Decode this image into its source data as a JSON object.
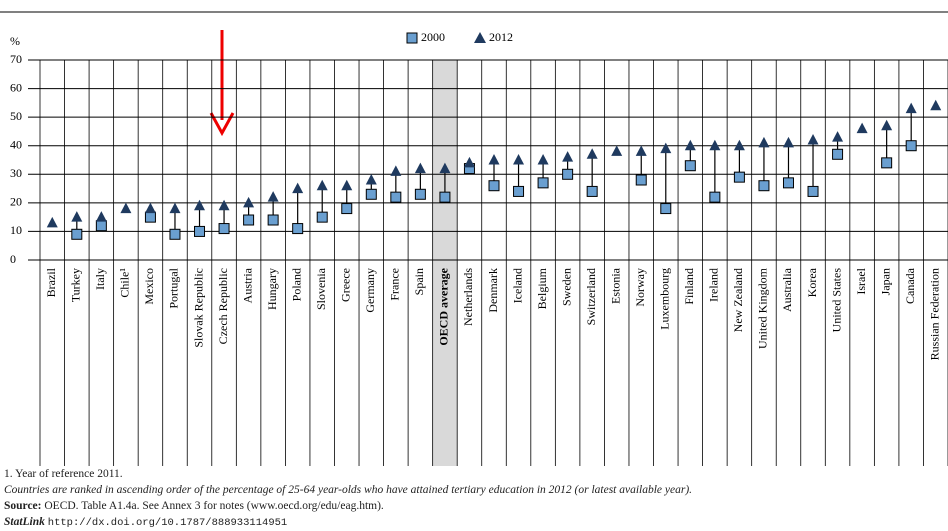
{
  "chart_data": {
    "type": "dot",
    "y_label": "%",
    "categories": [
      "Brazil",
      "Turkey",
      "Italy",
      "Chile¹",
      "Mexico",
      "Portugal",
      "Slovak Republic",
      "Czech Republic",
      "Austria",
      "Hungary",
      "Poland",
      "Slovenia",
      "Greece",
      "Germany",
      "France",
      "Spain",
      "OECD average",
      "Netherlands",
      "Denmark",
      "Iceland",
      "Belgium",
      "Sweden",
      "Switzerland",
      "Estonia",
      "Norway",
      "Luxembourg",
      "Finland",
      "Ireland",
      "New Zealand",
      "United Kingdom",
      "Australia",
      "Korea",
      "United States",
      "Israel",
      "Japan",
      "Canada",
      "Russian Federation"
    ],
    "highlight": "OECD average",
    "series": [
      {
        "name": "2000",
        "color": "#6a9fd0",
        "marker": "square",
        "values": [
          null,
          9,
          12,
          null,
          15,
          9,
          10,
          11,
          14,
          14,
          11,
          15,
          18,
          23,
          22,
          23,
          22,
          32,
          26,
          24,
          27,
          30,
          24,
          null,
          28,
          18,
          33,
          22,
          29,
          26,
          27,
          24,
          37,
          null,
          34,
          40,
          null
        ]
      },
      {
        "name": "2012",
        "color": "#1f3a5f",
        "marker": "triangle",
        "values": [
          13,
          15,
          15,
          18,
          18,
          18,
          19,
          19,
          20,
          22,
          25,
          26,
          26,
          28,
          31,
          32,
          32,
          34,
          35,
          35,
          35,
          36,
          37,
          38,
          38,
          39,
          40,
          40,
          40,
          41,
          41,
          42,
          43,
          46,
          47,
          53,
          54
        ]
      }
    ],
    "ylim": [
      0,
      70
    ],
    "yticks": [
      0,
      10,
      20,
      30,
      40,
      50,
      60,
      70
    ],
    "grid": true,
    "legend": "top",
    "notes": {
      "footnote": "1. Year of reference 2011.",
      "ranking": "Countries are ranked in ascending order of the percentage of 25-64 year-olds who have attained tertiary education in 2012 (or latest available year).",
      "source_label": "Source:",
      "source": "OECD. Table A1.4a. See Annex 3 for notes (www.oecd.org/edu/eag.htm).",
      "statlink_label": "StatLink",
      "statlink": "http://dx.doi.org/10.1787/888933114951"
    }
  }
}
